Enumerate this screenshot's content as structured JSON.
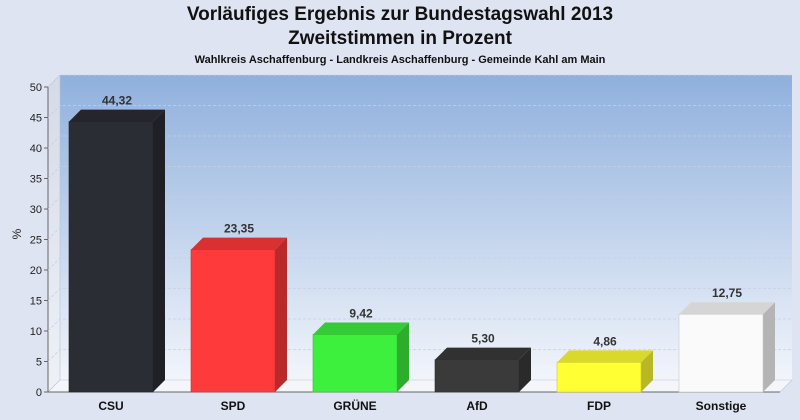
{
  "chart_data": {
    "type": "bar",
    "title": "Vorläufiges Ergebnis zur Bundestagswahl 2013",
    "subtitle": "Zweitstimmen in Prozent",
    "subsubtitle": "Wahlkreis Aschaffenburg - Landkreis Aschaffenburg - Gemeinde Kahl am Main",
    "ylabel": "%",
    "xlabel": "",
    "ylim": [
      0,
      50
    ],
    "yticks": [
      0,
      5,
      10,
      15,
      20,
      25,
      30,
      35,
      40,
      45,
      50
    ],
    "categories": [
      "CSU",
      "SPD",
      "GRÜNE",
      "AfD",
      "FDP",
      "Sonstige"
    ],
    "values": [
      44.32,
      23.35,
      9.42,
      5.3,
      4.86,
      12.75
    ],
    "value_labels": [
      "44,32",
      "23,35",
      "9,42",
      "5,30",
      "4,86",
      "12,75"
    ],
    "colors": [
      "#2b2d35",
      "#ff3a3a",
      "#3df03d",
      "#3a3a3a",
      "#ffff33",
      "#fafafa"
    ],
    "grid": true,
    "legend": "none"
  }
}
